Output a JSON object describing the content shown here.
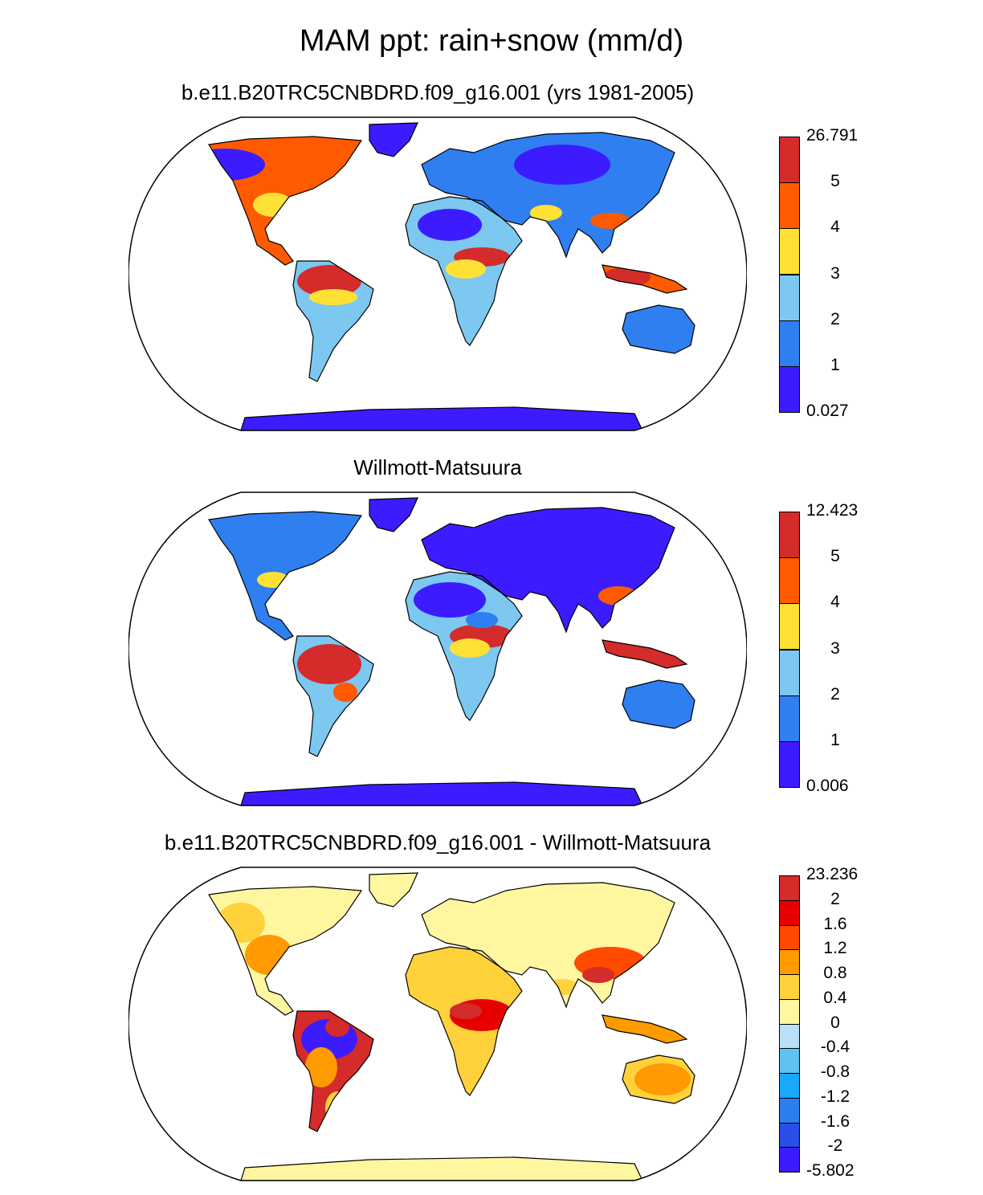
{
  "main_title": "MAM ppt: rain+snow (mm/d)",
  "panels": [
    {
      "title": "b.e11.B20TRC5CNBDRD.f09_g16.001 (yrs 1981-2005)",
      "colorbar": {
        "labels": [
          "26.791",
          "5",
          "4",
          "3",
          "2",
          "1",
          "0.027"
        ],
        "colors": [
          "#d42b2b",
          "#ff5a00",
          "#ffe135",
          "#7cc8f0",
          "#2f7ff0",
          "#3c1cff"
        ]
      }
    },
    {
      "title": "Willmott-Matsuura",
      "colorbar": {
        "labels": [
          "12.423",
          "5",
          "4",
          "3",
          "2",
          "1",
          "0.006"
        ],
        "colors": [
          "#d42b2b",
          "#ff5a00",
          "#ffe135",
          "#7cc8f0",
          "#2f7ff0",
          "#3c1cff"
        ]
      }
    },
    {
      "title": "b.e11.B20TRC5CNBDRD.f09_g16.001 - Willmott-Matsuura",
      "colorbar": {
        "labels": [
          "23.236",
          "2",
          "1.6",
          "1.2",
          "0.8",
          "0.4",
          "0",
          "-0.4",
          "-0.8",
          "-1.2",
          "-1.6",
          "-2",
          "-5.802"
        ],
        "colors": [
          "#d42b2b",
          "#e80000",
          "#ff4a00",
          "#ff9a00",
          "#ffd23c",
          "#fff6a0",
          "#b8e0f6",
          "#5ec2f2",
          "#1aa8f8",
          "#2c7ff0",
          "#2a4ee8",
          "#3c1cff"
        ]
      }
    }
  ]
}
